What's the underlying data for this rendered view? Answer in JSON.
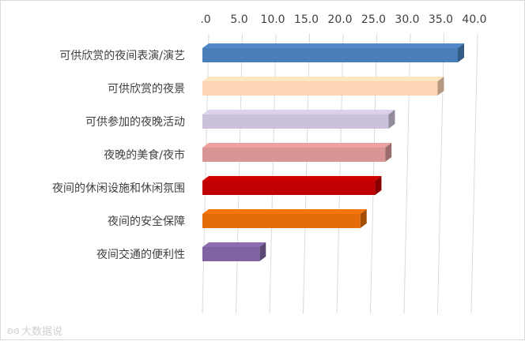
{
  "chart_data": {
    "type": "bar",
    "orientation": "horizontal",
    "categories": [
      "可供欣赏的夜间表演/演艺",
      "可供欣赏的夜景",
      "可供参加的夜晚活动",
      "夜晚的美食/夜市",
      "夜间的休闲设施和休闲氛围",
      "夜间的安全保障",
      "夜间交通的便利性"
    ],
    "values": [
      38.0,
      35.0,
      27.7,
      27.2,
      25.7,
      23.5,
      8.5
    ],
    "colors": [
      "#4a7ebb",
      "#fcd5b5",
      "#ccc1da",
      "#d99594",
      "#c00000",
      "#e46c0a",
      "#8064a2"
    ],
    "xlim": [
      0,
      40
    ],
    "ticks": [
      0,
      5,
      10,
      15,
      20,
      25,
      30,
      35,
      40
    ],
    "tick_labels": [
      ".0",
      "5.0",
      "10.0",
      "15.0",
      "20.0",
      "25.0",
      "30.0",
      "35.0",
      "40.0"
    ],
    "x_axis_position": "top",
    "grid": true,
    "style": "3d",
    "title": "",
    "xlabel": "",
    "ylabel": ""
  },
  "watermark": {
    "icon": "weibo-logo-icon",
    "text": "大数据说"
  }
}
